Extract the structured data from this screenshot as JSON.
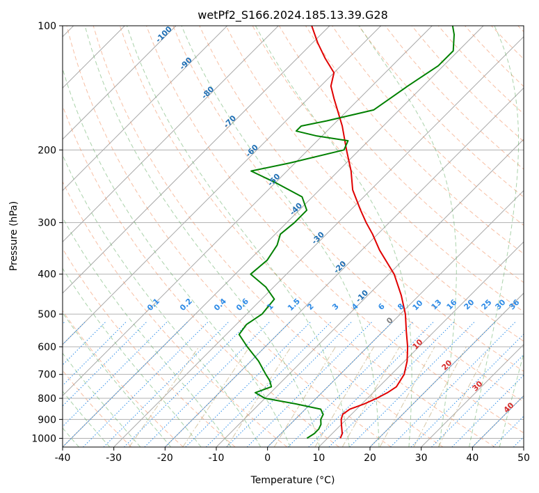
{
  "chart_data": {
    "type": "line",
    "title": "wetPf2_S166.2024.185.13.39.G28",
    "xlabel": "Temperature (°C)",
    "ylabel": "Pressure (hPa)",
    "xlim": [
      -40,
      50
    ],
    "ylim": [
      1050,
      100
    ],
    "y_scale": "log",
    "grid": true,
    "x_ticks": [
      "-40",
      "-30",
      "-20",
      "-10",
      "0",
      "10",
      "20",
      "30",
      "40",
      "50"
    ],
    "y_ticks": [
      "100",
      "200",
      "300",
      "400",
      "500",
      "600",
      "700",
      "800",
      "900",
      "1000"
    ],
    "dry_adiabat_labels": [
      "-100",
      "-90",
      "-80",
      "-70",
      "-60",
      "-50",
      "-40",
      "-30",
      "-20",
      "-10"
    ],
    "mixing_ratio_labels": [
      "0.1",
      "0.2",
      "0.4",
      "0.6",
      "1",
      "1.5",
      "2",
      "3",
      "4",
      "6",
      "8",
      "10",
      "13",
      "16",
      "20",
      "25",
      "30",
      "36"
    ],
    "moist_adiabat_labels": [
      "0",
      "10",
      "20",
      "30",
      "40"
    ],
    "series": [
      {
        "color": "#e00000",
        "points": [
          {
            "p": 1000,
            "t": 12.5
          },
          {
            "p": 975,
            "t": 12.0
          },
          {
            "p": 950,
            "t": 11.0
          },
          {
            "p": 925,
            "t": 10.0
          },
          {
            "p": 900,
            "t": 9.0
          },
          {
            "p": 875,
            "t": 8.3
          },
          {
            "p": 850,
            "t": 8.7
          },
          {
            "p": 825,
            "t": 10.5
          },
          {
            "p": 800,
            "t": 11.8
          },
          {
            "p": 775,
            "t": 12.8
          },
          {
            "p": 750,
            "t": 13.4
          },
          {
            "p": 700,
            "t": 12.5
          },
          {
            "p": 650,
            "t": 10.5
          },
          {
            "p": 600,
            "t": 7.8
          },
          {
            "p": 550,
            "t": 4.5
          },
          {
            "p": 500,
            "t": 1.0
          },
          {
            "p": 450,
            "t": -3.5
          },
          {
            "p": 400,
            "t": -9.0
          },
          {
            "p": 350,
            "t": -16.5
          },
          {
            "p": 320,
            "t": -21.0
          },
          {
            "p": 300,
            "t": -24.5
          },
          {
            "p": 280,
            "t": -28.0
          },
          {
            "p": 250,
            "t": -33.5
          },
          {
            "p": 225,
            "t": -37.5
          },
          {
            "p": 200,
            "t": -42.5
          },
          {
            "p": 175,
            "t": -48.0
          },
          {
            "p": 150,
            "t": -55.0
          },
          {
            "p": 140,
            "t": -58.0
          },
          {
            "p": 130,
            "t": -60.0
          },
          {
            "p": 120,
            "t": -64.5
          },
          {
            "p": 110,
            "t": -69.0
          },
          {
            "p": 100,
            "t": -73.5
          }
        ]
      },
      {
        "color": "#008000",
        "points": [
          {
            "p": 1000,
            "t": 6.0
          },
          {
            "p": 975,
            "t": 6.5
          },
          {
            "p": 950,
            "t": 6.5
          },
          {
            "p": 925,
            "t": 6.0
          },
          {
            "p": 900,
            "t": 5.0
          },
          {
            "p": 875,
            "t": 4.5
          },
          {
            "p": 850,
            "t": 3.0
          },
          {
            "p": 825,
            "t": -3.0
          },
          {
            "p": 800,
            "t": -10.0
          },
          {
            "p": 775,
            "t": -13.0
          },
          {
            "p": 750,
            "t": -11.0
          },
          {
            "p": 725,
            "t": -12.5
          },
          {
            "p": 700,
            "t": -14.5
          },
          {
            "p": 650,
            "t": -18.5
          },
          {
            "p": 600,
            "t": -23.5
          },
          {
            "p": 560,
            "t": -27.5
          },
          {
            "p": 530,
            "t": -28.0
          },
          {
            "p": 500,
            "t": -27.0
          },
          {
            "p": 460,
            "t": -27.5
          },
          {
            "p": 430,
            "t": -31.5
          },
          {
            "p": 400,
            "t": -37.0
          },
          {
            "p": 370,
            "t": -36.5
          },
          {
            "p": 340,
            "t": -37.5
          },
          {
            "p": 320,
            "t": -39.0
          },
          {
            "p": 300,
            "t": -38.5
          },
          {
            "p": 280,
            "t": -38.5
          },
          {
            "p": 260,
            "t": -42.0
          },
          {
            "p": 240,
            "t": -50.0
          },
          {
            "p": 225,
            "t": -57.0
          },
          {
            "p": 215,
            "t": -51.0
          },
          {
            "p": 200,
            "t": -43.0
          },
          {
            "p": 190,
            "t": -44.0
          },
          {
            "p": 185,
            "t": -51.0
          },
          {
            "p": 180,
            "t": -56.0
          },
          {
            "p": 175,
            "t": -56.0
          },
          {
            "p": 170,
            "t": -52.0
          },
          {
            "p": 160,
            "t": -45.0
          },
          {
            "p": 140,
            "t": -43.0
          },
          {
            "p": 125,
            "t": -41.0
          },
          {
            "p": 115,
            "t": -41.0
          },
          {
            "p": 105,
            "t": -44.0
          },
          {
            "p": 100,
            "t": -46.0
          }
        ]
      }
    ]
  }
}
